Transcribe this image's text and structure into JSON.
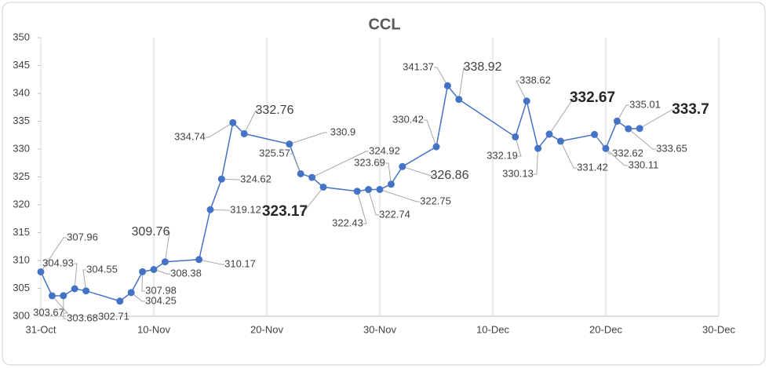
{
  "chart_data": {
    "type": "line",
    "title": "CCL",
    "x": [
      "31-Oct",
      "1-Nov",
      "2-Nov",
      "3-Nov",
      "4-Nov",
      "7-Nov",
      "8-Nov",
      "9-Nov",
      "10-Nov",
      "11-Nov",
      "14-Nov",
      "15-Nov",
      "16-Nov",
      "17-Nov",
      "18-Nov",
      "22-Nov",
      "23-Nov",
      "24-Nov",
      "25-Nov",
      "28-Nov",
      "29-Nov",
      "30-Nov",
      "1-Dec",
      "2-Dec",
      "5-Dec",
      "6-Dec",
      "7-Dec",
      "12-Dec",
      "13-Dec",
      "14-Dec",
      "15-Dec",
      "16-Dec",
      "19-Dec",
      "20-Dec",
      "21-Dec",
      "22-Dec",
      "23-Dec"
    ],
    "series": [
      {
        "name": "CCL",
        "color": "#4472c4",
        "values": [
          307.96,
          303.67,
          303.68,
          304.93,
          304.55,
          302.71,
          304.25,
          307.98,
          308.38,
          309.76,
          310.17,
          319.12,
          324.62,
          334.74,
          332.76,
          330.9,
          325.57,
          324.92,
          323.17,
          322.43,
          322.74,
          322.75,
          323.69,
          326.86,
          330.42,
          341.37,
          338.92,
          332.19,
          338.62,
          330.13,
          332.67,
          331.42,
          332.62,
          330.11,
          335.01,
          333.65,
          333.7
        ]
      }
    ],
    "xlim": [
      "31-Oct",
      "30-Dec"
    ],
    "xticks": [
      "31-Oct",
      "10-Nov",
      "20-Nov",
      "30-Nov",
      "10-Dec",
      "20-Dec",
      "30-Dec"
    ],
    "ylim": [
      300,
      350
    ],
    "yticks": [
      300,
      305,
      310,
      315,
      320,
      325,
      330,
      335,
      340,
      345,
      350
    ],
    "grid": "x"
  }
}
